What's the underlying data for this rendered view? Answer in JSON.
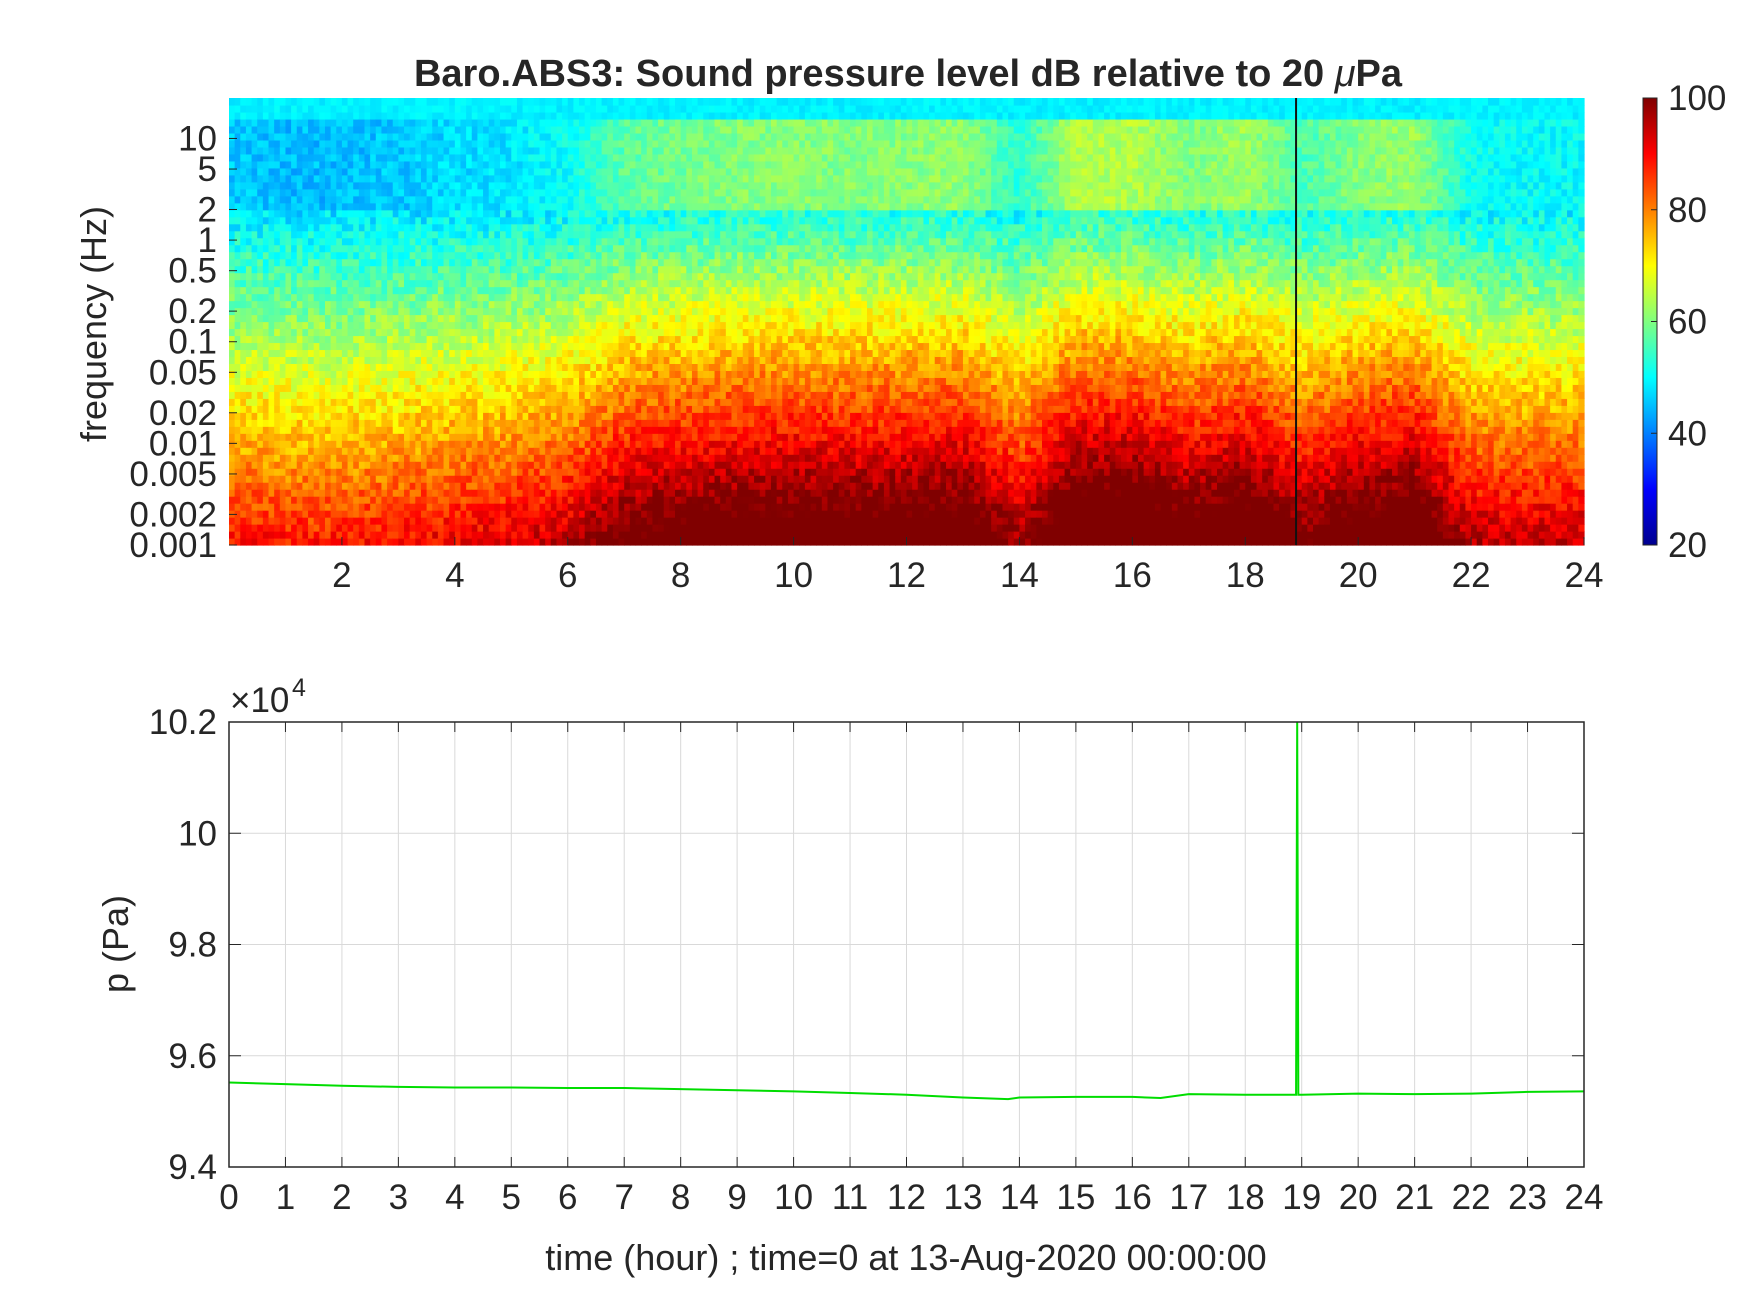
{
  "chart_data": [
    {
      "type": "heatmap",
      "title": "Baro.ABS3: Sound pressure level dB relative to 20 μPa",
      "title_prefix": "Baro.ABS3: Sound pressure level dB relative to 20 ",
      "title_mu": "μ",
      "title_suffix": "Pa",
      "xlabel": "",
      "ylabel": "frequency (Hz)",
      "x_unit": "hour",
      "xlim": [
        0,
        24
      ],
      "x_ticks": [
        2,
        4,
        6,
        8,
        10,
        12,
        14,
        16,
        18,
        20,
        22,
        24
      ],
      "x_tick_labels": [
        "2",
        "4",
        "6",
        "8",
        "10",
        "12",
        "14",
        "16",
        "18",
        "20",
        "22",
        "24"
      ],
      "y_scale": "log",
      "ylim": [
        0.001,
        25
      ],
      "y_ticks": [
        0.001,
        0.002,
        0.005,
        0.01,
        0.02,
        0.05,
        0.1,
        0.2,
        0.5,
        1,
        2,
        5,
        10
      ],
      "y_tick_labels": [
        "0.001",
        "0.002",
        "0.005",
        "0.01",
        "0.02",
        "0.05",
        "0.1",
        "0.2",
        "0.5",
        "1",
        "2",
        "5",
        "10"
      ],
      "colormap": "jet",
      "colorbar": {
        "range": [
          20,
          100
        ],
        "ticks": [
          20,
          40,
          60,
          80,
          100
        ],
        "tick_labels": [
          "20",
          "40",
          "60",
          "80",
          "100"
        ],
        "placement": "right"
      },
      "time_bins_hour": [
        0,
        1,
        2,
        3,
        4,
        5,
        6,
        7,
        8,
        9,
        10,
        11,
        12,
        13,
        14,
        15,
        16,
        17,
        18,
        19,
        20,
        21,
        22,
        23,
        24
      ],
      "activity_level_0_to_1": [
        0.2,
        0.16,
        0.16,
        0.2,
        0.26,
        0.3,
        0.4,
        0.68,
        0.75,
        0.8,
        0.82,
        0.8,
        0.82,
        0.85,
        0.5,
        0.96,
        0.95,
        0.78,
        0.9,
        0.62,
        0.8,
        0.88,
        0.42,
        0.38,
        0.38
      ],
      "level_db_at_0.001Hz": 84,
      "level_db_at_10Hz_and_above": 49,
      "vertical_line_hour": 18.9,
      "grid": false
    },
    {
      "type": "line",
      "title": "",
      "xlabel": "time (hour) ; time=0 at 13-Aug-2020 00:00:00",
      "ylabel": "p (Pa)",
      "xlim": [
        0,
        24
      ],
      "ylim": [
        94000,
        102000
      ],
      "exponent_label": "×10",
      "exponent_power": "4",
      "x_ticks": [
        0,
        1,
        2,
        3,
        4,
        5,
        6,
        7,
        8,
        9,
        10,
        11,
        12,
        13,
        14,
        15,
        16,
        17,
        18,
        19,
        20,
        21,
        22,
        23,
        24
      ],
      "x_tick_labels": [
        "0",
        "1",
        "2",
        "3",
        "4",
        "5",
        "6",
        "7",
        "8",
        "9",
        "10",
        "11",
        "12",
        "13",
        "14",
        "15",
        "16",
        "17",
        "18",
        "19",
        "20",
        "21",
        "22",
        "23",
        "24"
      ],
      "y_ticks": [
        94000,
        96000,
        98000,
        100000,
        102000
      ],
      "y_tick_labels": [
        "9.4",
        "9.6",
        "9.8",
        "10",
        "10.2"
      ],
      "grid": true,
      "series_color": "#00dd00",
      "series": [
        {
          "x": [
            0,
            1,
            2,
            3,
            4,
            5,
            6,
            7,
            8,
            9,
            10,
            11,
            12,
            13,
            13.8,
            14,
            15,
            16,
            16.5,
            17,
            18,
            18.9,
            18.92,
            18.94,
            19,
            20,
            21,
            22,
            23,
            24
          ],
          "y": [
            95520,
            95490,
            95460,
            95440,
            95430,
            95430,
            95420,
            95420,
            95400,
            95380,
            95360,
            95330,
            95300,
            95250,
            95220,
            95250,
            95260,
            95260,
            95240,
            95310,
            95300,
            95300,
            102000,
            95300,
            95300,
            95320,
            95310,
            95320,
            95350,
            95360
          ]
        }
      ]
    }
  ]
}
